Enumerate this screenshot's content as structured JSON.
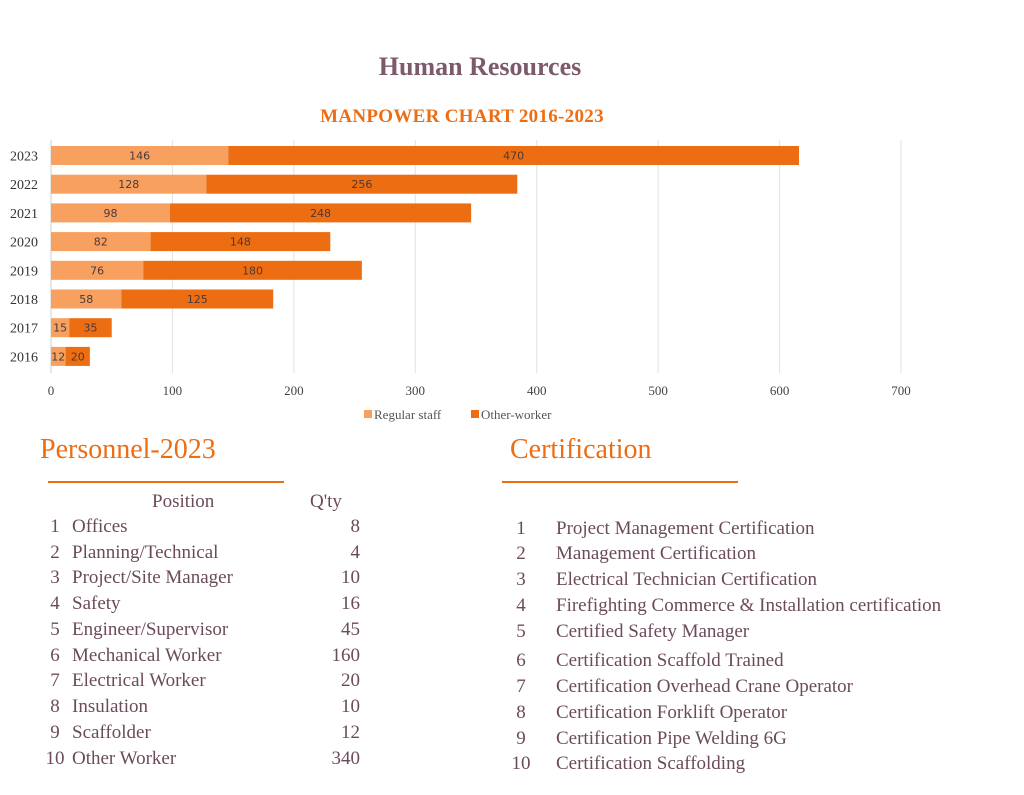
{
  "header": {
    "title": "Human Resources"
  },
  "chart_data": {
    "type": "bar",
    "orientation": "horizontal",
    "stacked": true,
    "title": "MANPOWER CHART 2016-2023",
    "categories": [
      "2023",
      "2022",
      "2021",
      "2020",
      "2019",
      "2018",
      "2017",
      "2016"
    ],
    "series": [
      {
        "name": "Regular staff",
        "color": "#f7a060",
        "values": [
          146,
          128,
          98,
          82,
          76,
          58,
          15,
          12
        ]
      },
      {
        "name": "Other-worker",
        "color": "#ed6d12",
        "values": [
          470,
          256,
          248,
          148,
          180,
          125,
          35,
          20
        ]
      }
    ],
    "xlim": [
      0,
      700
    ],
    "xticks": [
      0,
      100,
      200,
      300,
      400,
      500,
      600,
      700
    ],
    "grid": true,
    "legend": "bottom"
  },
  "personnel": {
    "title": "Personnel-2023",
    "header_position": "Position",
    "header_qty": "Q'ty",
    "rows": [
      {
        "num": "1",
        "position": "Offices",
        "qty": "8"
      },
      {
        "num": "2",
        "position": "Planning/Technical",
        "qty": "4"
      },
      {
        "num": "3",
        "position": "Project/Site Manager",
        "qty": "10"
      },
      {
        "num": "4",
        "position": "Safety",
        "qty": "16"
      },
      {
        "num": "5",
        "position": "Engineer/Supervisor",
        "qty": "45"
      },
      {
        "num": "6",
        "position": "Mechanical Worker",
        "qty": "160"
      },
      {
        "num": "7",
        "position": "Electrical Worker",
        "qty": "20"
      },
      {
        "num": "8",
        "position": "Insulation",
        "qty": "10"
      },
      {
        "num": "9",
        "position": "Scaffolder",
        "qty": "12"
      },
      {
        "num": "10",
        "position": "Other Worker",
        "qty": "340"
      }
    ]
  },
  "certification": {
    "title": "Certification",
    "items": [
      {
        "num": "1",
        "name": "Project Management Certification"
      },
      {
        "num": "2",
        "name": "Management Certification"
      },
      {
        "num": "3",
        "name": "Electrical Technician Certification"
      },
      {
        "num": "4",
        "name": "Firefighting Commerce & Installation certification"
      },
      {
        "num": "5",
        "name": "Certified Safety Manager"
      },
      {
        "num": "6",
        "name": "Certification Scaffold Trained"
      },
      {
        "num": "7",
        "name": "Certification Overhead Crane Operator"
      },
      {
        "num": "8",
        "name": "Certification Forklift Operator"
      },
      {
        "num": "9",
        "name": "Certification Pipe Welding 6G"
      },
      {
        "num": "10",
        "name": "Certification Scaffolding"
      }
    ]
  }
}
